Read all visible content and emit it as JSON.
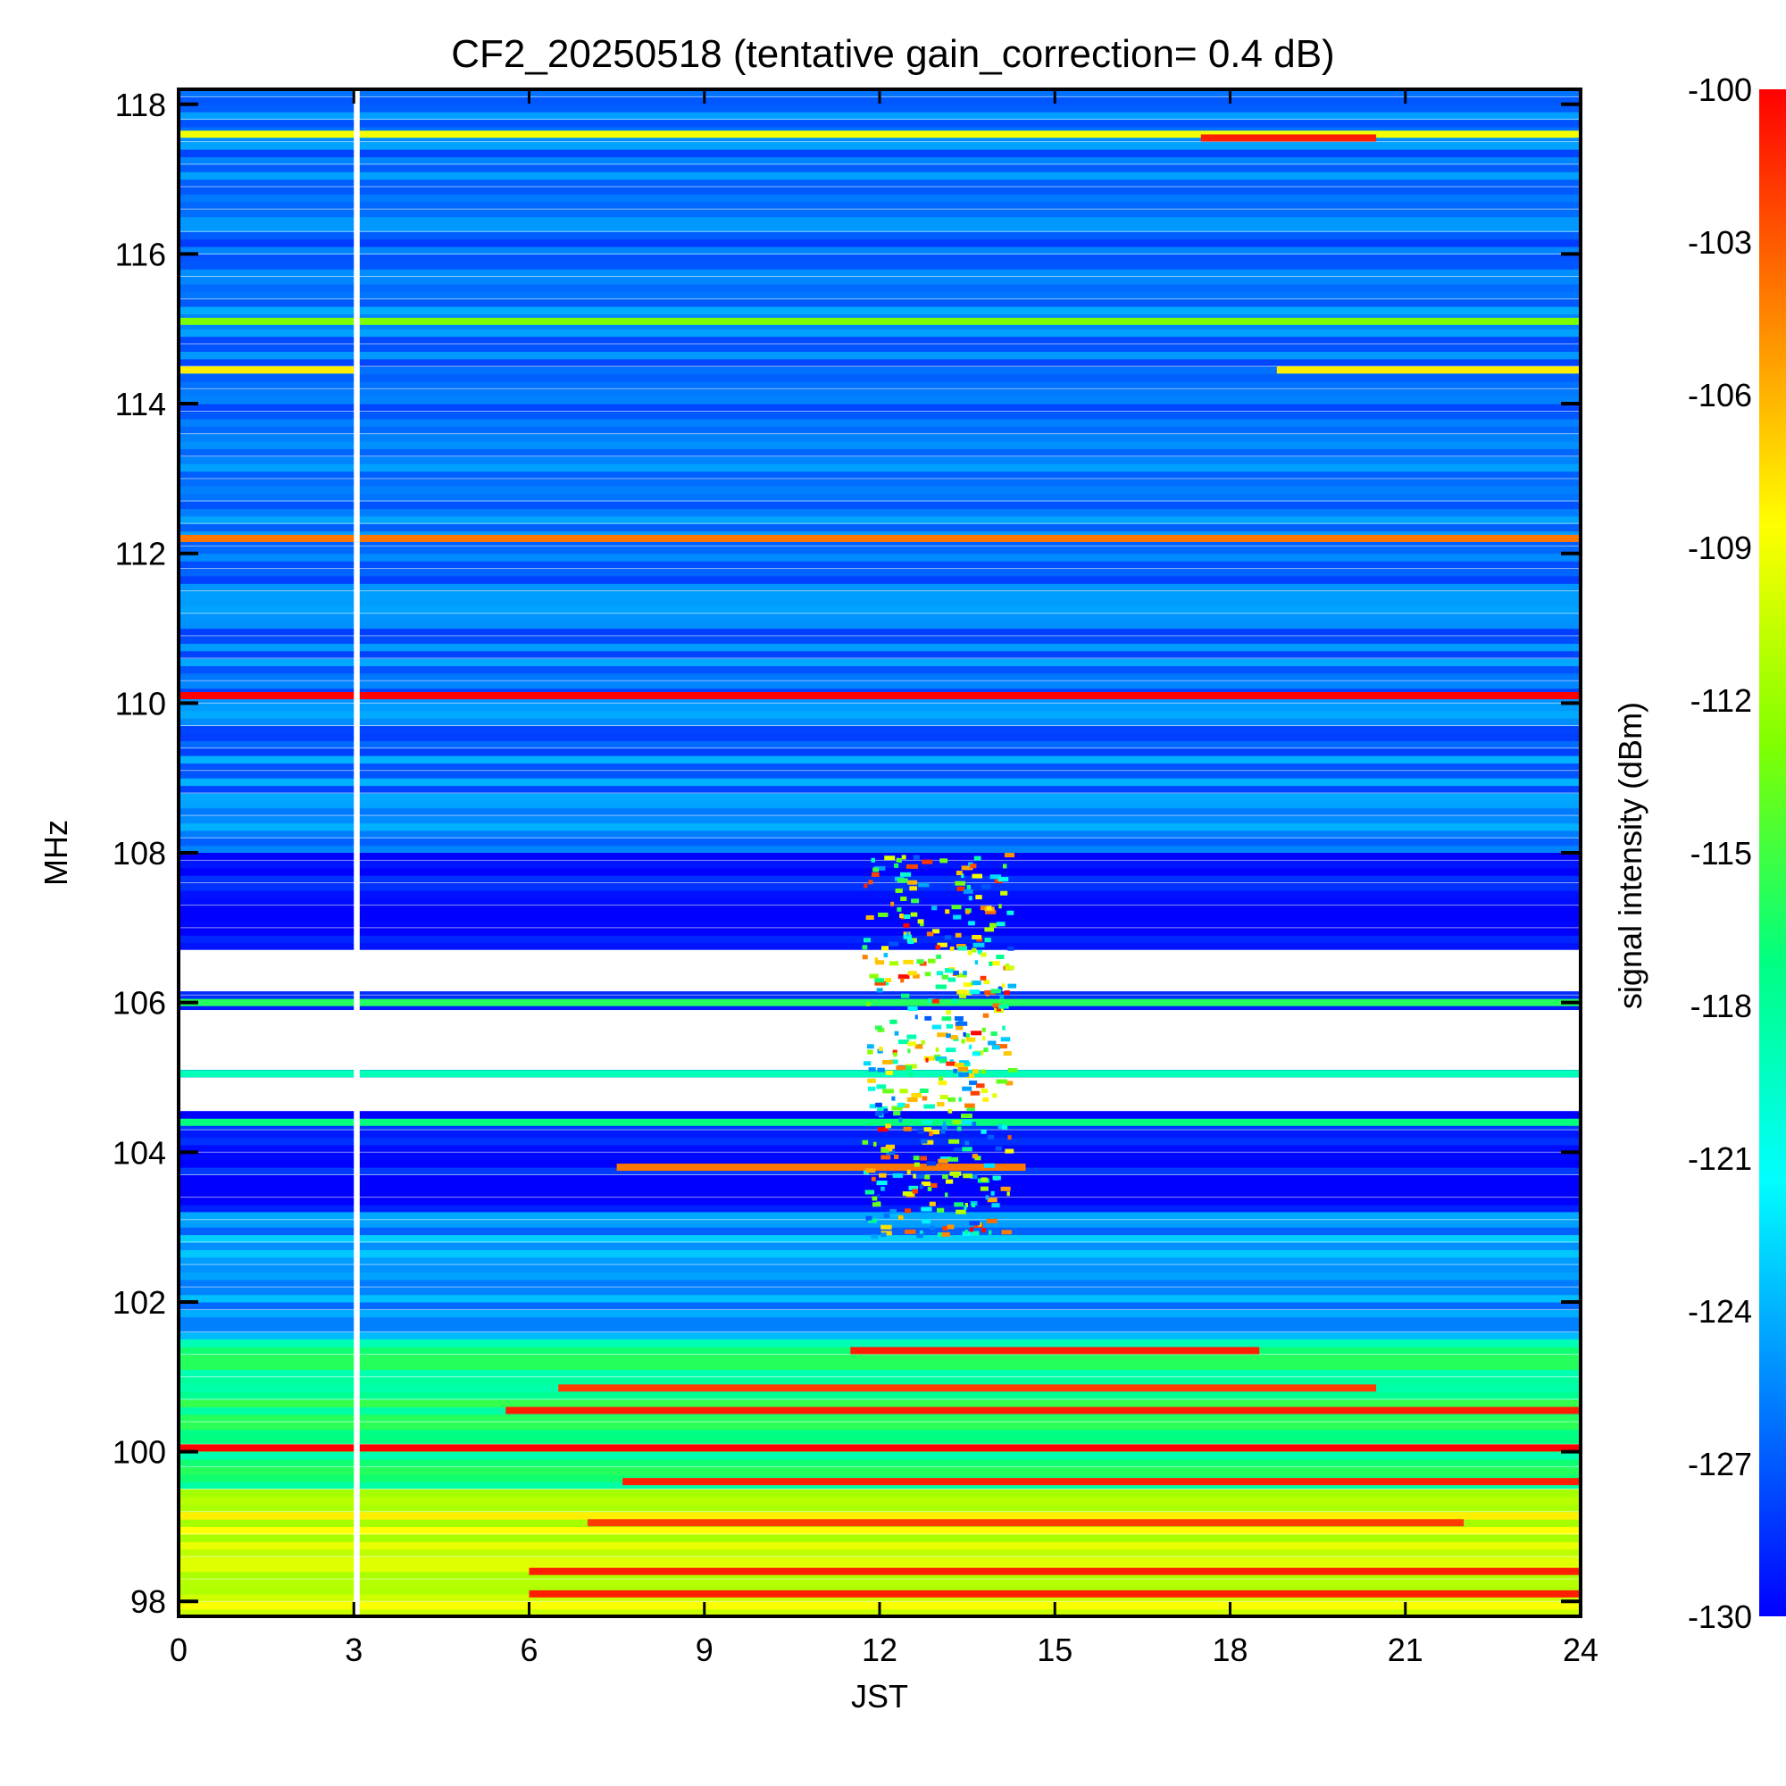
{
  "chart_data": {
    "type": "heatmap",
    "title": "CF2_20250518 (tentative gain_correction=  0.4 dB)",
    "xlabel": "JST",
    "ylabel": "MHz",
    "colorbar_label": "signal intensity (dBm)",
    "xlim": [
      0,
      24
    ],
    "ylim": [
      97.8,
      118.2
    ],
    "clim": [
      -130,
      -100
    ],
    "x_ticks": [
      "0",
      "3",
      "6",
      "9",
      "12",
      "15",
      "18",
      "21",
      "24"
    ],
    "y_ticks": [
      "98",
      "100",
      "102",
      "104",
      "106",
      "108",
      "110",
      "112",
      "114",
      "116",
      "118"
    ],
    "colorbar_ticks": [
      "-100",
      "-103",
      "-106",
      "-109",
      "-112",
      "-115",
      "-118",
      "-121",
      "-124",
      "-127",
      "-130"
    ],
    "colormap": [
      "#0000ff",
      "#0080ff",
      "#00ffff",
      "#00ff80",
      "#80ff00",
      "#ffff00",
      "#ff8000",
      "#ff0000"
    ],
    "data_gap": {
      "x_start": 3.0,
      "x_end": 3.1
    },
    "background_by_frequency": [
      {
        "mhz_from": 108.0,
        "mhz_to": 118.2,
        "level_dbm": -126
      },
      {
        "mhz_from": 103.2,
        "mhz_to": 108.0,
        "level_dbm": -130
      },
      {
        "mhz_from": 101.5,
        "mhz_to": 103.2,
        "level_dbm": -125
      },
      {
        "mhz_from": 99.5,
        "mhz_to": 101.5,
        "level_dbm": -117
      },
      {
        "mhz_from": 97.8,
        "mhz_to": 99.5,
        "level_dbm": -110
      }
    ],
    "missing_data_regions": [
      {
        "mhz_from": 106.15,
        "mhz_to": 106.7
      },
      {
        "mhz_from": 105.1,
        "mhz_to": 105.9
      },
      {
        "mhz_from": 104.55,
        "mhz_to": 105.0
      }
    ],
    "stations": [
      {
        "mhz": 117.6,
        "level_dbm": -109,
        "x_start": 0,
        "x_end": 24
      },
      {
        "mhz": 117.55,
        "level_dbm": -101,
        "x_start": 17.5,
        "x_end": 20.5
      },
      {
        "mhz": 115.1,
        "level_dbm": -113,
        "x_start": 0,
        "x_end": 24
      },
      {
        "mhz": 114.45,
        "level_dbm": -108,
        "x_start": 0,
        "x_end": 3
      },
      {
        "mhz": 114.45,
        "level_dbm": -108,
        "x_start": 18.8,
        "x_end": 24
      },
      {
        "mhz": 112.2,
        "level_dbm": -104,
        "x_start": 0,
        "x_end": 24
      },
      {
        "mhz": 110.1,
        "level_dbm": -100,
        "x_start": 0,
        "x_end": 24
      },
      {
        "mhz": 106.0,
        "level_dbm": -116,
        "x_start": 0,
        "x_end": 24
      },
      {
        "mhz": 105.05,
        "level_dbm": -119,
        "x_start": 0,
        "x_end": 24
      },
      {
        "mhz": 104.4,
        "level_dbm": -117,
        "x_start": 0,
        "x_end": 24
      },
      {
        "mhz": 103.8,
        "level_dbm": -104,
        "x_start": 7.5,
        "x_end": 14.5
      },
      {
        "mhz": 101.35,
        "level_dbm": -101,
        "x_start": 11.5,
        "x_end": 18.5
      },
      {
        "mhz": 100.85,
        "level_dbm": -102,
        "x_start": 6.5,
        "x_end": 20.5
      },
      {
        "mhz": 100.55,
        "level_dbm": -101,
        "x_start": 5.6,
        "x_end": 24
      },
      {
        "mhz": 100.05,
        "level_dbm": -100,
        "x_start": 0,
        "x_end": 24
      },
      {
        "mhz": 99.6,
        "level_dbm": -101,
        "x_start": 7.6,
        "x_end": 24
      },
      {
        "mhz": 99.05,
        "level_dbm": -102,
        "x_start": 7.0,
        "x_end": 22.0
      },
      {
        "mhz": 98.4,
        "level_dbm": -101,
        "x_start": 6.0,
        "x_end": 24
      },
      {
        "mhz": 98.1,
        "level_dbm": -101,
        "x_start": 6.0,
        "x_end": 24
      }
    ],
    "midday_burst": {
      "x_start": 11.7,
      "x_end": 14.2,
      "mhz_from": 102.9,
      "mhz_to": 108.0
    }
  }
}
